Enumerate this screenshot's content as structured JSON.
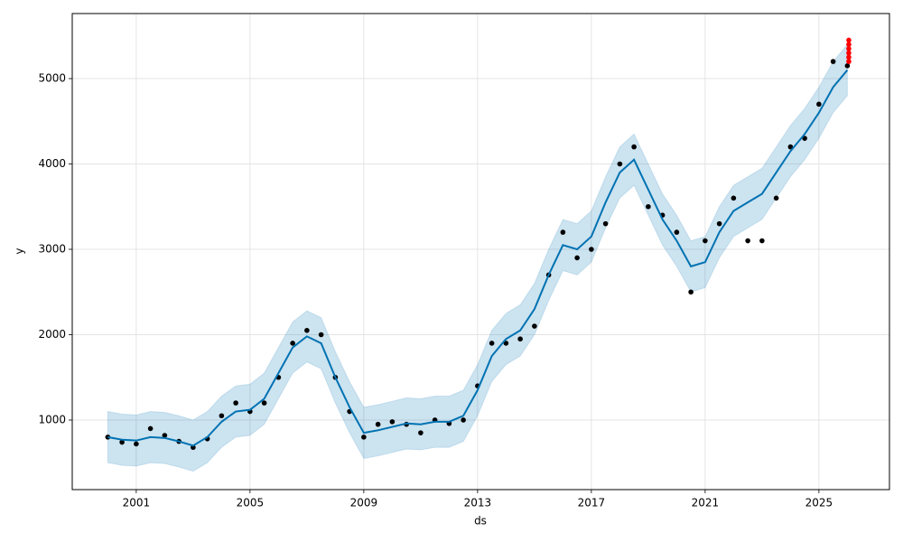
{
  "chart_data": {
    "type": "line",
    "xlabel": "ds",
    "ylabel": "y",
    "grid": true,
    "xlim": [
      1998.75,
      2027.48
    ],
    "ylim": [
      185,
      5762
    ],
    "xticks": [
      2001,
      2005,
      2009,
      2013,
      2017,
      2021,
      2025
    ],
    "yticks": [
      1000,
      2000,
      3000,
      4000,
      5000
    ],
    "x": [
      2000.0,
      2000.5,
      2001.0,
      2001.5,
      2002.0,
      2002.5,
      2003.0,
      2003.5,
      2004.0,
      2004.5,
      2005.0,
      2005.5,
      2006.0,
      2006.5,
      2007.0,
      2007.5,
      2008.0,
      2008.5,
      2009.0,
      2009.5,
      2010.0,
      2010.5,
      2011.0,
      2011.5,
      2012.0,
      2012.5,
      2013.0,
      2013.5,
      2014.0,
      2014.5,
      2015.0,
      2015.5,
      2016.0,
      2016.5,
      2017.0,
      2017.5,
      2018.0,
      2018.5,
      2019.0,
      2019.5,
      2020.0,
      2020.5,
      2021.0,
      2021.5,
      2022.0,
      2022.5,
      2023.0,
      2023.5,
      2024.0,
      2024.5,
      2025.0,
      2025.5,
      2026.0
    ],
    "series": [
      {
        "type": "band",
        "color": "#0072b2",
        "lower": [
          500,
          470,
          460,
          500,
          490,
          450,
          400,
          500,
          680,
          800,
          820,
          950,
          1250,
          1550,
          1680,
          1600,
          1200,
          850,
          550,
          580,
          620,
          660,
          650,
          680,
          680,
          750,
          1050,
          1450,
          1650,
          1750,
          2000,
          2400,
          2750,
          2700,
          2850,
          3250,
          3600,
          3750,
          3400,
          3050,
          2800,
          2500,
          2550,
          2900,
          3150,
          3250,
          3350,
          3600,
          3850,
          4050,
          4300,
          4600,
          4800
        ],
        "upper": [
          1100,
          1070,
          1060,
          1100,
          1090,
          1050,
          1000,
          1100,
          1280,
          1400,
          1420,
          1550,
          1850,
          2150,
          2280,
          2200,
          1800,
          1450,
          1150,
          1180,
          1220,
          1260,
          1250,
          1280,
          1280,
          1350,
          1650,
          2050,
          2250,
          2350,
          2600,
          3000,
          3350,
          3300,
          3450,
          3850,
          4200,
          4350,
          4000,
          3650,
          3400,
          3100,
          3150,
          3500,
          3750,
          3850,
          3950,
          4200,
          4450,
          4650,
          4900,
          5200,
          5400
        ]
      },
      {
        "type": "scatter",
        "color": "#000000",
        "values": [
          800,
          740,
          720,
          900,
          820,
          750,
          680,
          780,
          1050,
          1200,
          1100,
          1200,
          1500,
          1900,
          2050,
          2000,
          1500,
          1100,
          800,
          950,
          980,
          950,
          850,
          1000,
          960,
          1000,
          1400,
          1900,
          1900,
          1950,
          2100,
          2700,
          3200,
          2900,
          3000,
          3300,
          4000,
          4200,
          3500,
          3400,
          3200,
          2500,
          3100,
          3300,
          3600,
          3100,
          3100,
          3600,
          4200,
          4300,
          4700,
          5200,
          5150
        ]
      },
      {
        "type": "line",
        "color": "#0072b2",
        "values": [
          800,
          770,
          760,
          800,
          790,
          750,
          700,
          800,
          980,
          1100,
          1120,
          1250,
          1550,
          1850,
          1980,
          1900,
          1500,
          1150,
          850,
          880,
          920,
          960,
          950,
          980,
          980,
          1050,
          1350,
          1750,
          1950,
          2050,
          2300,
          2700,
          3050,
          3000,
          3150,
          3550,
          3900,
          4050,
          3700,
          3350,
          3100,
          2800,
          2850,
          3200,
          3450,
          3550,
          3650,
          3900,
          4150,
          4350,
          4600,
          4900,
          5100
        ]
      },
      {
        "type": "scatter",
        "color": "#ff0000",
        "x": [
          2026.05,
          2026.05,
          2026.05,
          2026.05,
          2026.05,
          2026.05
        ],
        "values": [
          5200,
          5250,
          5300,
          5350,
          5400,
          5450
        ]
      }
    ]
  }
}
